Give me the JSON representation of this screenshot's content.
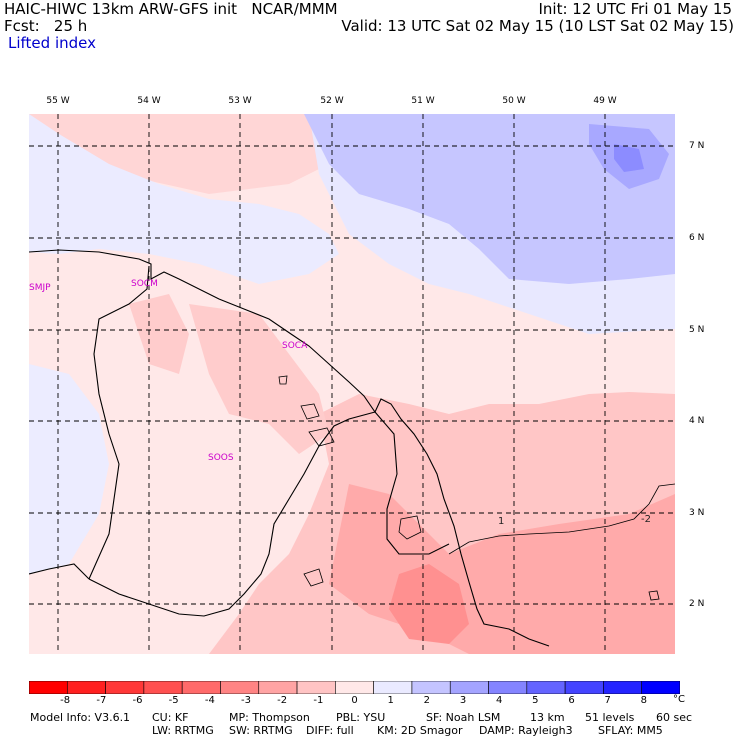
{
  "header": {
    "line1_left": "HAIC-HIWC 13km ARW-GFS init   NCAR/MMM",
    "line1_right": "Init: 12 UTC Fri 01 May 15",
    "line2_left": "Fcst:   25 h",
    "line2_right": "Valid: 13 UTC Sat 02 May 15 (10 LST Sat 02 May 15)",
    "field_name": "Lifted index"
  },
  "map": {
    "longitude_labels": [
      "55 W",
      "54 W",
      "53 W",
      "52 W",
      "51 W",
      "50 W",
      "49 W"
    ],
    "latitude_labels": [
      "7 N",
      "6 N",
      "5 N",
      "4 N",
      "3 N",
      "2 N"
    ],
    "stations": [
      "SMJP",
      "SOCM",
      "SOCA",
      "SOOS"
    ],
    "contour_labels": [
      "1",
      "-2"
    ]
  },
  "colorbar": {
    "ticks": [
      "-8",
      "-7",
      "-6",
      "-5",
      "-4",
      "-3",
      "-2",
      "-1",
      "0",
      "1",
      "2",
      "3",
      "4",
      "5",
      "6",
      "7",
      "8"
    ],
    "unit": "°C",
    "colors": [
      "#ff0000",
      "#ff2020",
      "#ff3838",
      "#ff5050",
      "#ff6a6a",
      "#ff8484",
      "#ffa4a4",
      "#ffc4c4",
      "#ffe8e8",
      "#eaeaff",
      "#c4c4ff",
      "#a4a4ff",
      "#8484ff",
      "#6464ff",
      "#4444ff",
      "#2424ff",
      "#0000ff"
    ]
  },
  "footer": {
    "line1": [
      "Model Info: V3.6.1",
      "CU: KF",
      "MP: Thompson",
      "PBL: YSU",
      "SF: Noah LSM",
      "13 km",
      "51 levels",
      "60 sec"
    ],
    "line2": [
      "LW: RRTMG",
      "SW: RRTMG",
      "DIFF: full",
      "KM: 2D Smagor",
      "DAMP: Rayleigh3",
      "SFLAY: MM5"
    ]
  }
}
